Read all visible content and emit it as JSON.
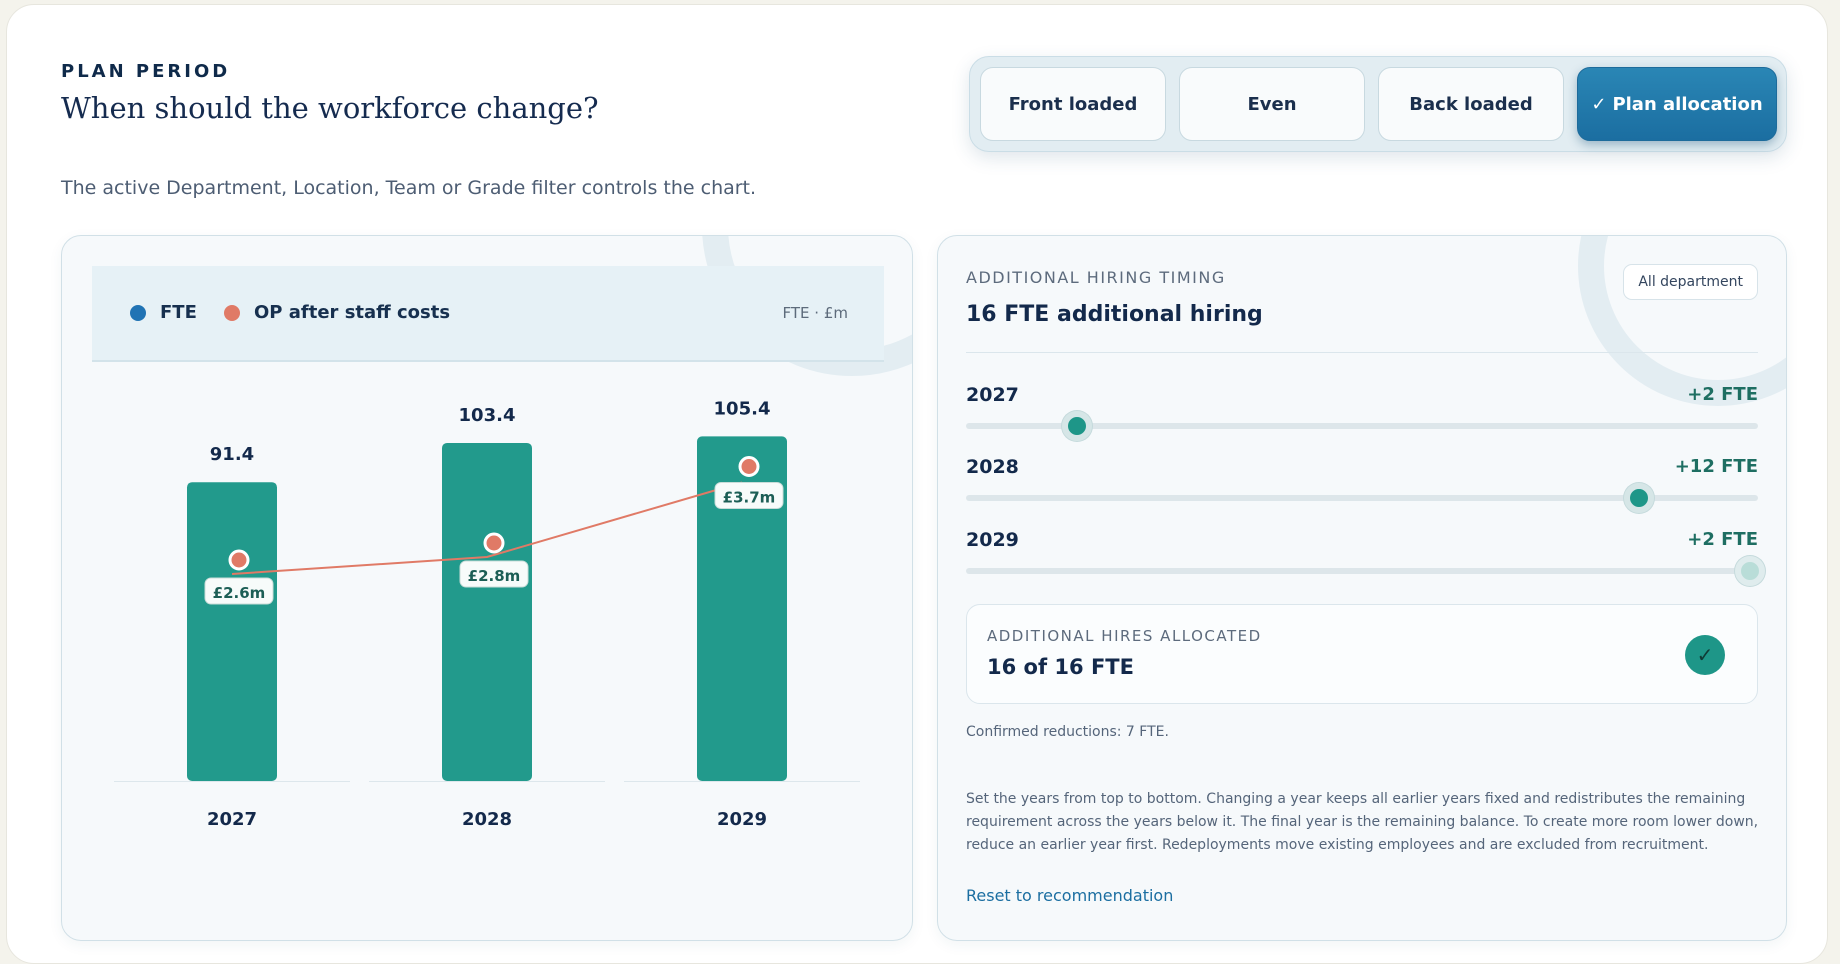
{
  "header": {
    "eyebrow": "PLAN PERIOD",
    "title": "When should the workforce change?",
    "subtitle": "The active Department, Location, Team or Grade filter controls the chart."
  },
  "profile_options": {
    "items": [
      {
        "label": "Front loaded",
        "active": false
      },
      {
        "label": "Even",
        "active": false
      },
      {
        "label": "Back loaded",
        "active": false
      },
      {
        "label": "Plan allocation",
        "active": true
      }
    ],
    "active_check": "✓"
  },
  "legend": {
    "fte_label": "FTE",
    "op_label": "OP after staff costs",
    "units": "FTE · £m"
  },
  "colors": {
    "fte": "#229a8c",
    "op": "#e07a66",
    "accent": "#1b6ea1"
  },
  "chart_data": {
    "type": "bar",
    "categories": [
      "2027",
      "2028",
      "2029"
    ],
    "series": [
      {
        "name": "FTE",
        "type": "bar",
        "values": [
          91.4,
          103.4,
          105.4
        ],
        "labels": [
          "91.4",
          "103.4",
          "105.4"
        ]
      },
      {
        "name": "OP after staff costs",
        "type": "line",
        "values": [
          2.6,
          2.8,
          3.7
        ],
        "labels": [
          "£2.6m",
          "£2.8m",
          "£3.7m"
        ]
      }
    ],
    "grid": false,
    "legend_position": "top-left"
  },
  "timing": {
    "eyebrow": "ADDITIONAL HIRING TIMING",
    "title": "16 FTE additional hiring",
    "department_chip": "All department",
    "years": [
      {
        "year": "2027",
        "value_label": "+2 FTE",
        "fraction": 0.14
      },
      {
        "year": "2028",
        "value_label": "+12 FTE",
        "fraction": 0.85
      },
      {
        "year": "2029",
        "value_label": "+2 FTE",
        "fraction": 0.99
      }
    ],
    "allocated_eyebrow": "ADDITIONAL HIRES ALLOCATED",
    "allocated_value": "16 of 16 FTE",
    "allocated_check": "✓",
    "confirmed": "Confirmed reductions: 7 FTE.",
    "help": "Set the years from top to bottom. Changing a year keeps all earlier years fixed and redistributes the remaining requirement across the years below it. The final year is the remaining balance. To create more room lower down, reduce an earlier year first. Redeployments move existing employees and are excluded from recruitment.",
    "reset_label": "Reset to recommendation"
  }
}
